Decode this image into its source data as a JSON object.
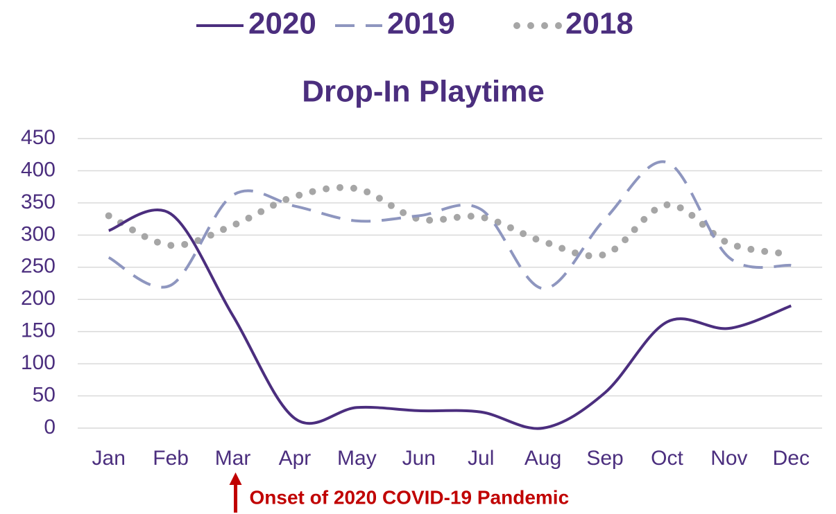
{
  "chart_data": {
    "type": "line",
    "title": "Drop-In Playtime",
    "categories": [
      "Jan",
      "Feb",
      "Mar",
      "Apr",
      "May",
      "Jun",
      "Jul",
      "Aug",
      "Sep",
      "Oct",
      "Nov",
      "Dec"
    ],
    "series": [
      {
        "name": "2020",
        "color": "#4b2e7e",
        "style": "solid",
        "values": [
          307,
          333,
          175,
          15,
          32,
          27,
          25,
          0,
          55,
          165,
          155,
          190
        ]
      },
      {
        "name": "2019",
        "color": "#8e96bf",
        "style": "dashed",
        "values": [
          265,
          222,
          362,
          345,
          322,
          330,
          340,
          217,
          325,
          413,
          265,
          253
        ]
      },
      {
        "name": "2018",
        "color": "#a6a6a6",
        "style": "dotted",
        "values": [
          330,
          284,
          315,
          360,
          372,
          325,
          328,
          290,
          270,
          347,
          287,
          270
        ]
      }
    ],
    "ylim": [
      0,
      450
    ],
    "yticks": [
      0,
      50,
      100,
      150,
      200,
      250,
      300,
      350,
      400,
      450
    ],
    "grid": true,
    "smooth": true,
    "legend": "top",
    "annotation": {
      "text": "Onset of 2020 COVID-19 Pandemic",
      "category": 2,
      "color": "#c00000"
    }
  }
}
